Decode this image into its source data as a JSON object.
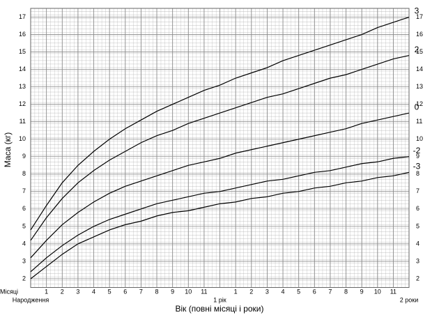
{
  "chart_data": {
    "type": "line",
    "y_label": "Маса (кг)",
    "x_label": "Вік (повні місяці і роки)",
    "month_label": "Місяці",
    "x": [
      0,
      1,
      2,
      3,
      4,
      5,
      6,
      7,
      8,
      9,
      10,
      11,
      12,
      13,
      14,
      15,
      16,
      17,
      18,
      19,
      20,
      21,
      22,
      23,
      24
    ],
    "series": [
      {
        "name": "3",
        "color": "#000000",
        "values": [
          4.8,
          6.2,
          7.5,
          8.5,
          9.3,
          10.0,
          10.6,
          11.1,
          11.6,
          12.0,
          12.4,
          12.8,
          13.1,
          13.5,
          13.8,
          14.1,
          14.5,
          14.8,
          15.1,
          15.4,
          15.7,
          16.0,
          16.4,
          16.7,
          17.0
        ]
      },
      {
        "name": "2",
        "color": "#000000",
        "values": [
          4.2,
          5.5,
          6.6,
          7.5,
          8.2,
          8.8,
          9.3,
          9.8,
          10.2,
          10.5,
          10.9,
          11.2,
          11.5,
          11.8,
          12.1,
          12.4,
          12.6,
          12.9,
          13.2,
          13.5,
          13.7,
          14.0,
          14.3,
          14.6,
          14.8
        ]
      },
      {
        "name": "0",
        "color": "#000000",
        "values": [
          3.2,
          4.2,
          5.1,
          5.8,
          6.4,
          6.9,
          7.3,
          7.6,
          7.9,
          8.2,
          8.5,
          8.7,
          8.9,
          9.2,
          9.4,
          9.6,
          9.8,
          10.0,
          10.2,
          10.4,
          10.6,
          10.9,
          11.1,
          11.3,
          11.5
        ]
      },
      {
        "name": "-2",
        "color": "#000000",
        "values": [
          2.4,
          3.2,
          3.9,
          4.5,
          5.0,
          5.4,
          5.7,
          6.0,
          6.3,
          6.5,
          6.7,
          6.9,
          7.0,
          7.2,
          7.4,
          7.6,
          7.7,
          7.9,
          8.1,
          8.2,
          8.4,
          8.6,
          8.7,
          8.9,
          9.0
        ]
      },
      {
        "name": "-3",
        "color": "#000000",
        "values": [
          2.0,
          2.7,
          3.4,
          4.0,
          4.4,
          4.8,
          5.1,
          5.3,
          5.6,
          5.8,
          5.9,
          6.1,
          6.3,
          6.4,
          6.6,
          6.7,
          6.9,
          7.0,
          7.2,
          7.3,
          7.5,
          7.6,
          7.8,
          7.9,
          8.1
        ]
      }
    ],
    "xlim": [
      0,
      24
    ],
    "xticks": [
      {
        "value": 0,
        "label": "Народження"
      },
      1,
      2,
      3,
      4,
      5,
      6,
      7,
      8,
      9,
      10,
      11,
      {
        "value": 12,
        "label": "1 рік"
      },
      {
        "value": 13,
        "label": "1"
      },
      {
        "value": 14,
        "label": "2"
      },
      {
        "value": 15,
        "label": "3"
      },
      {
        "value": 16,
        "label": "4"
      },
      {
        "value": 17,
        "label": "5"
      },
      {
        "value": 18,
        "label": "6"
      },
      {
        "value": 19,
        "label": "7"
      },
      {
        "value": 20,
        "label": "8"
      },
      {
        "value": 21,
        "label": "9"
      },
      {
        "value": 22,
        "label": "10"
      },
      {
        "value": 23,
        "label": "11"
      },
      {
        "value": 24,
        "label": "2 роки"
      }
    ],
    "ylim": [
      1.5,
      17.5
    ],
    "yticks": [
      2,
      3,
      4,
      5,
      6,
      7,
      8,
      9,
      10,
      11,
      12,
      13,
      14,
      15,
      16,
      17
    ],
    "grid": true
  }
}
